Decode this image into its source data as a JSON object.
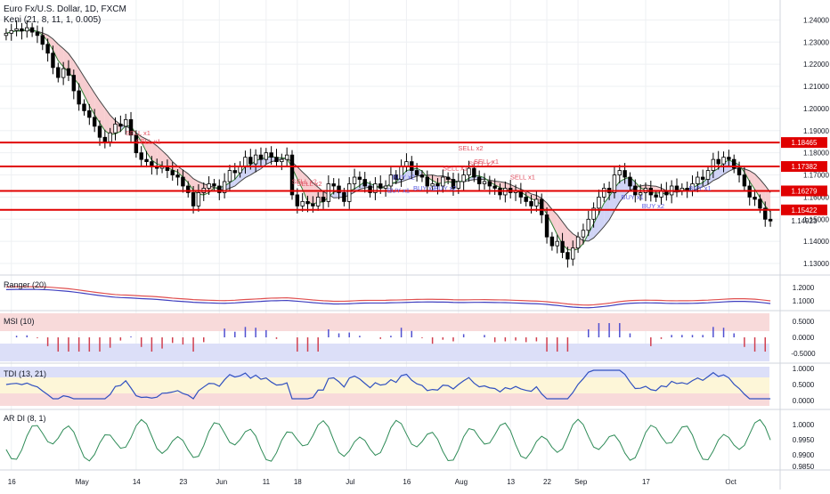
{
  "title": "Euro Fx/U.S. Dollar, 1D, FXCM",
  "indicator_label": "Keni (21, 8, 11, 1, 0.005)",
  "panels": [
    {
      "label": "Ranger (20)"
    },
    {
      "label": "MSI (10)"
    },
    {
      "label": "TDI (13, 21)"
    },
    {
      "label": "AR DI (8, 1)"
    }
  ],
  "colors": {
    "candle_up": "#ffffff",
    "candle_down": "#000000",
    "level_line": "#e00000",
    "price_badge": "#e00000",
    "sell_text": "#e05060",
    "buy_text": "#5b5be0",
    "cloud_red": "#f6c4c8",
    "cloud_blue": "#c8ccf4",
    "grid": "#eef0f3"
  },
  "chart_data": {
    "type": "candlestick",
    "x_ticks": [
      "16",
      "May",
      "14",
      "23",
      "Jun",
      "11",
      "18",
      "Jul",
      "16",
      "Aug",
      "13",
      "22",
      "Sep",
      "17",
      "Oct"
    ],
    "y_ticks": [
      "1.24000",
      "1.23000",
      "1.22000",
      "1.21000",
      "1.20000",
      "1.19000",
      "1.18000",
      "1.17000",
      "1.16000",
      "1.15000",
      "1.14000",
      "1.13000"
    ],
    "ylim": [
      1.126,
      1.247
    ],
    "levels": [
      1.18465,
      1.17382,
      1.16279,
      1.15422
    ],
    "last_price": 1.14923,
    "closes": [
      1.234,
      1.2352,
      1.236,
      1.235,
      1.2365,
      1.2345,
      1.233,
      1.229,
      1.225,
      1.2185,
      1.214,
      1.218,
      1.215,
      1.208,
      1.202,
      1.199,
      1.196,
      1.192,
      1.187,
      1.185,
      1.189,
      1.193,
      1.192,
      1.195,
      1.188,
      1.18,
      1.177,
      1.176,
      1.174,
      1.173,
      1.174,
      1.172,
      1.17,
      1.169,
      1.165,
      1.162,
      1.156,
      1.162,
      1.164,
      1.166,
      1.165,
      1.162,
      1.167,
      1.172,
      1.171,
      1.174,
      1.178,
      1.175,
      1.179,
      1.177,
      1.18,
      1.178,
      1.176,
      1.177,
      1.179,
      1.161,
      1.156,
      1.158,
      1.157,
      1.156,
      1.16,
      1.158,
      1.166,
      1.165,
      1.162,
      1.158,
      1.166,
      1.169,
      1.168,
      1.165,
      1.162,
      1.166,
      1.164,
      1.165,
      1.17,
      1.168,
      1.174,
      1.176,
      1.172,
      1.17,
      1.169,
      1.165,
      1.166,
      1.165,
      1.169,
      1.168,
      1.164,
      1.167,
      1.17,
      1.173,
      1.169,
      1.166,
      1.167,
      1.165,
      1.164,
      1.161,
      1.164,
      1.162,
      1.163,
      1.16,
      1.158,
      1.156,
      1.159,
      1.152,
      1.142,
      1.138,
      1.14,
      1.135,
      1.132,
      1.137,
      1.142,
      1.145,
      1.15,
      1.155,
      1.16,
      1.164,
      1.162,
      1.17,
      1.172,
      1.169,
      1.165,
      1.161,
      1.162,
      1.164,
      1.161,
      1.16,
      1.163,
      1.161,
      1.165,
      1.163,
      1.164,
      1.163,
      1.166,
      1.169,
      1.168,
      1.172,
      1.177,
      1.175,
      1.178,
      1.177,
      1.173,
      1.17,
      1.165,
      1.16,
      1.159,
      1.155,
      1.15,
      1.1492
    ]
  },
  "signals": {
    "sell": [
      "SELL x1",
      "SELL x1",
      "SELL x2",
      "SELL x2",
      "SELL x1",
      "SELL x2",
      "SELL x2",
      "SELL x1",
      "SELL x1"
    ],
    "buy": [
      "BUY x1",
      "BUY x2",
      "BUY x2",
      "BUY x2",
      "BUY x1",
      "BUY x2",
      "BUY x1"
    ]
  },
  "panel_axes": {
    "ranger": [
      "1.2000",
      "1.1000"
    ],
    "msi": [
      "0.5000",
      "0.0000",
      "-0.5000"
    ],
    "tdi": [
      "1.0000",
      "0.5000",
      "0.0000"
    ],
    "ardi": [
      "1.0000",
      "0.9950",
      "0.9900",
      "0.9850"
    ]
  }
}
